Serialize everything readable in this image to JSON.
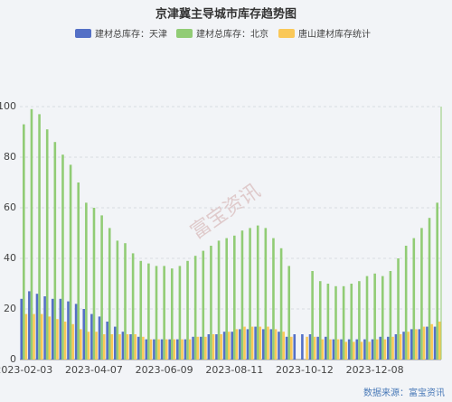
{
  "chart_data": {
    "type": "bar",
    "title": "京津冀主导城市库存趋势图",
    "source": "数据来源：富宝资讯",
    "watermark": "富宝资讯",
    "categories": [
      "2023-02-03",
      null,
      null,
      null,
      null,
      null,
      null,
      null,
      null,
      "2023-04-07",
      null,
      null,
      null,
      null,
      null,
      null,
      null,
      null,
      "2023-06-09",
      null,
      null,
      null,
      null,
      null,
      null,
      null,
      null,
      "2023-08-11",
      null,
      null,
      null,
      null,
      null,
      null,
      null,
      null,
      "2023-10-12",
      null,
      null,
      null,
      null,
      null,
      null,
      null,
      null,
      "2023-12-08",
      null,
      null,
      null,
      null,
      null,
      null,
      null,
      null
    ],
    "series": [
      {
        "name": "建材总库存：天津",
        "color": "#5470c6",
        "values": [
          24,
          27,
          26,
          25,
          24,
          24,
          23,
          22,
          20,
          18,
          17,
          15,
          13,
          11,
          10,
          9,
          8,
          8,
          8,
          8,
          8,
          8,
          9,
          9,
          10,
          10,
          11,
          11,
          12,
          12,
          13,
          12,
          12,
          11,
          9,
          10,
          10,
          10,
          9,
          9,
          8,
          8,
          8,
          8,
          8,
          8,
          9,
          9,
          10,
          11,
          12,
          12,
          13,
          13
        ]
      },
      {
        "name": "建材总库存：北京",
        "color": "#91cc75",
        "values": [
          93,
          99,
          97,
          91,
          86,
          81,
          77,
          70,
          62,
          60,
          57,
          52,
          47,
          46,
          42,
          39,
          38,
          37,
          37,
          36,
          37,
          39,
          41,
          43,
          45,
          47,
          48,
          49,
          51,
          52,
          53,
          52,
          48,
          44,
          37,
          null,
          null,
          35,
          31,
          30,
          29,
          29,
          30,
          31,
          33,
          34,
          33,
          35,
          40,
          45,
          48,
          52,
          56,
          62
        ]
      },
      {
        "name": "唐山建材库存统计",
        "color": "#fac858",
        "values": [
          18,
          18,
          18,
          17,
          16,
          15,
          14,
          12,
          11,
          11,
          10,
          10,
          10,
          10,
          10,
          9,
          8,
          8,
          8,
          8,
          8,
          8,
          9,
          9,
          10,
          10,
          11,
          12,
          13,
          13,
          13,
          13,
          12,
          11,
          9,
          null,
          9,
          9,
          8,
          8,
          8,
          7,
          7,
          7,
          7,
          8,
          8,
          9,
          10,
          11,
          12,
          13,
          14,
          15
        ]
      }
    ],
    "ylim": [
      0,
      100
    ],
    "yticks": [
      0,
      20,
      40,
      60,
      80,
      100
    ],
    "grid": true
  }
}
